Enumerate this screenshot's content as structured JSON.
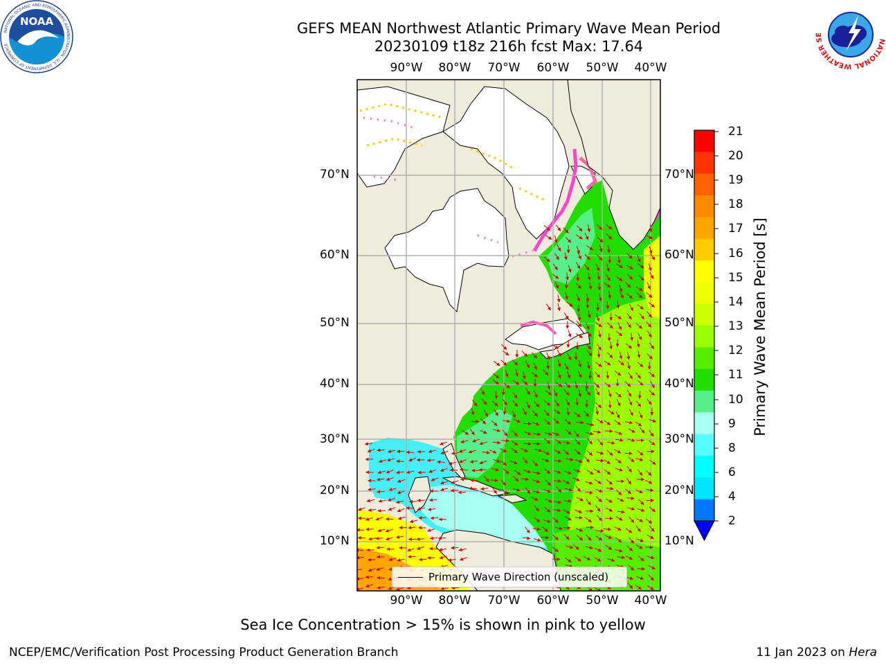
{
  "title_line1": "GEFS MEAN Northwest Atlantic Primary Wave Mean Period",
  "title_line2": "20230109 t18z 216h fcst   Max: 17.64",
  "longitude_labels": [
    "90°W",
    "80°W",
    "70°W",
    "60°W",
    "50°W",
    "40°W"
  ],
  "latitude_labels": [
    "70°N",
    "60°N",
    "50°N",
    "40°N",
    "30°N",
    "20°N",
    "10°N"
  ],
  "legend_label": "Primary Wave Direction (unscaled)",
  "colorbar": {
    "title": "Primary Wave Mean Period [s]",
    "ticks": [
      "21",
      "20",
      "19",
      "18",
      "17",
      "16",
      "15",
      "14",
      "13",
      "12",
      "11",
      "10",
      "9",
      "8",
      "6",
      "4",
      "2"
    ],
    "colors": [
      "#ff0000",
      "#ff3300",
      "#ff6000",
      "#ff8800",
      "#ffa500",
      "#ffcc00",
      "#ffff00",
      "#eeff00",
      "#ccff00",
      "#99ff00",
      "#55ee00",
      "#22dd00",
      "#55f08a",
      "#a6fff0",
      "#55ffff",
      "#00ffff",
      "#00e5ff",
      "#0077ff"
    ],
    "under_color": "#0000ff"
  },
  "colors": {
    "land": "#efecdc",
    "ice": "#ffffff",
    "arrow": "#dd0000",
    "grid": "#b0b0b0"
  },
  "sea_ice_note": "Sea Ice Concentration > 15% is shown in pink to yellow",
  "footer_left": "NCEP/EMC/Verification Post Processing Product Generation Branch",
  "footer_right_date": "11 Jan 2023 on ",
  "footer_right_machine": "Hera",
  "logos": {
    "noaa_text": "NOAA",
    "noaa_ring_text": "NATIONAL OCEANIC AND ATMOSPHERIC ADMINISTRATION · U.S. DEPARTMENT OF COMMERCE",
    "nws_ring_text": "NATIONAL WEATHER SERVICE"
  }
}
